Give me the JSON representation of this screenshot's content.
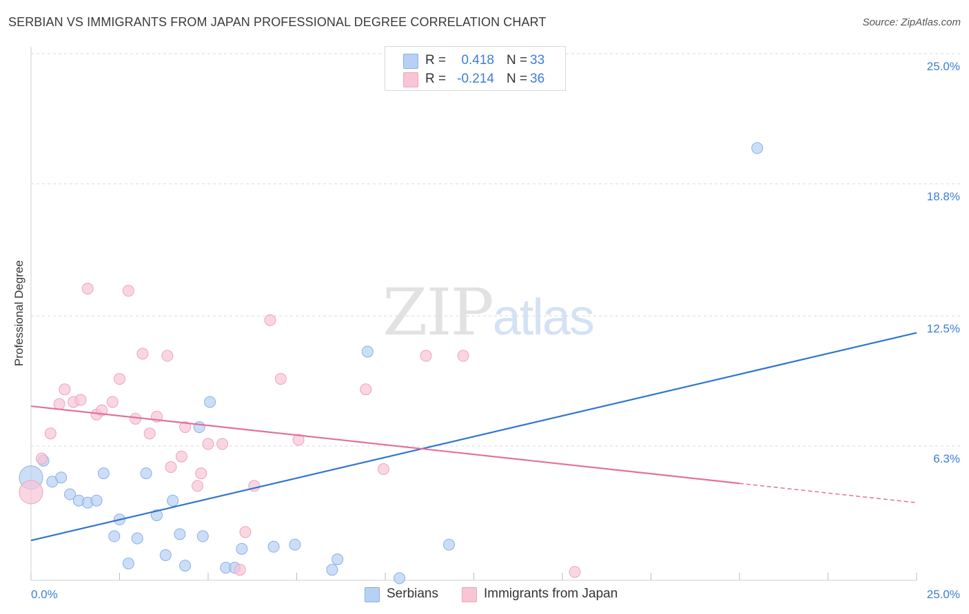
{
  "header": {
    "title": "SERBIAN VS IMMIGRANTS FROM JAPAN PROFESSIONAL DEGREE CORRELATION CHART",
    "source": "Source: ZipAtlas.com"
  },
  "watermark": {
    "zip": "ZIP",
    "atlas": "atlas"
  },
  "colors": {
    "serbians_fill": "#b7d0f3",
    "serbians_stroke": "#88b0e6",
    "serbians_line": "#2f74d0",
    "japan_fill": "#f8c5d5",
    "japan_stroke": "#eea3bb",
    "japan_line": "#e46f9c",
    "tick_label": "#3b7dd8",
    "grid": "#d9d9d9"
  },
  "legend": {
    "rows": [
      {
        "r_label": "R =",
        "r_value": "0.418",
        "n_label": "N =",
        "n_value": "33"
      },
      {
        "r_label": "R =",
        "r_value": "-0.214",
        "n_label": "N =",
        "n_value": "36"
      }
    ]
  },
  "bottom_legend": [
    {
      "label": "Serbians"
    },
    {
      "label": "Immigrants from Japan"
    }
  ],
  "chart_data": {
    "type": "scatter",
    "title": "SERBIAN VS IMMIGRANTS FROM JAPAN PROFESSIONAL DEGREE CORRELATION CHART",
    "xlabel": "",
    "ylabel": "Professional Degree",
    "xlim": [
      0,
      25
    ],
    "ylim": [
      0,
      25
    ],
    "x_tick_labels": [
      "0.0%",
      "25.0%"
    ],
    "y_ticks": [
      6.3,
      12.5,
      18.8,
      25.0
    ],
    "y_tick_labels": [
      "6.3%",
      "12.5%",
      "18.8%",
      "25.0%"
    ],
    "grid": true,
    "legend_position": "top-center",
    "series": [
      {
        "name": "Serbians",
        "r": 0.418,
        "n": 33,
        "trend": {
          "x": [
            0,
            25
          ],
          "y": [
            1.8,
            11.7
          ]
        },
        "points": [
          {
            "x": 0.0,
            "y": 4.8,
            "big": true
          },
          {
            "x": 0.35,
            "y": 5.6
          },
          {
            "x": 0.6,
            "y": 4.6
          },
          {
            "x": 0.85,
            "y": 4.8
          },
          {
            "x": 1.1,
            "y": 4.0
          },
          {
            "x": 1.35,
            "y": 3.7
          },
          {
            "x": 1.6,
            "y": 3.6
          },
          {
            "x": 1.85,
            "y": 3.7
          },
          {
            "x": 2.05,
            "y": 5.0
          },
          {
            "x": 2.35,
            "y": 2.0
          },
          {
            "x": 2.5,
            "y": 2.8
          },
          {
            "x": 2.75,
            "y": 0.7
          },
          {
            "x": 3.0,
            "y": 1.9
          },
          {
            "x": 3.25,
            "y": 5.0
          },
          {
            "x": 3.55,
            "y": 3.0
          },
          {
            "x": 3.8,
            "y": 1.1
          },
          {
            "x": 4.0,
            "y": 3.7
          },
          {
            "x": 4.2,
            "y": 2.1
          },
          {
            "x": 4.35,
            "y": 0.6
          },
          {
            "x": 4.75,
            "y": 7.2
          },
          {
            "x": 4.85,
            "y": 2.0
          },
          {
            "x": 5.05,
            "y": 8.4
          },
          {
            "x": 5.5,
            "y": 0.5
          },
          {
            "x": 5.75,
            "y": 0.5
          },
          {
            "x": 5.95,
            "y": 1.4
          },
          {
            "x": 6.85,
            "y": 1.5
          },
          {
            "x": 7.45,
            "y": 1.6
          },
          {
            "x": 8.5,
            "y": 0.4
          },
          {
            "x": 8.65,
            "y": 0.9
          },
          {
            "x": 9.5,
            "y": 10.8
          },
          {
            "x": 10.4,
            "y": 0.0
          },
          {
            "x": 11.8,
            "y": 1.6
          },
          {
            "x": 20.5,
            "y": 20.5
          }
        ]
      },
      {
        "name": "Immigrants from Japan",
        "r": -0.214,
        "n": 36,
        "trend": {
          "x": [
            0,
            25
          ],
          "y": [
            8.2,
            3.6
          ],
          "solid_to_x": 20.0
        },
        "points": [
          {
            "x": 0.0,
            "y": 4.1,
            "big": true
          },
          {
            "x": 0.3,
            "y": 5.7
          },
          {
            "x": 0.55,
            "y": 6.9
          },
          {
            "x": 0.8,
            "y": 8.3
          },
          {
            "x": 0.95,
            "y": 9.0
          },
          {
            "x": 1.2,
            "y": 8.4
          },
          {
            "x": 1.4,
            "y": 8.5
          },
          {
            "x": 1.6,
            "y": 13.8
          },
          {
            "x": 1.85,
            "y": 7.8
          },
          {
            "x": 2.0,
            "y": 8.0
          },
          {
            "x": 2.3,
            "y": 8.4
          },
          {
            "x": 2.5,
            "y": 9.5
          },
          {
            "x": 2.75,
            "y": 13.7
          },
          {
            "x": 2.95,
            "y": 7.6
          },
          {
            "x": 3.15,
            "y": 10.7
          },
          {
            "x": 3.35,
            "y": 6.9
          },
          {
            "x": 3.55,
            "y": 7.7
          },
          {
            "x": 3.85,
            "y": 10.6
          },
          {
            "x": 3.95,
            "y": 5.3
          },
          {
            "x": 4.25,
            "y": 5.8
          },
          {
            "x": 4.35,
            "y": 7.2
          },
          {
            "x": 4.7,
            "y": 4.4
          },
          {
            "x": 4.8,
            "y": 5.0
          },
          {
            "x": 5.0,
            "y": 6.4
          },
          {
            "x": 5.4,
            "y": 6.4
          },
          {
            "x": 5.9,
            "y": 0.4
          },
          {
            "x": 6.05,
            "y": 2.2
          },
          {
            "x": 6.3,
            "y": 4.4
          },
          {
            "x": 6.75,
            "y": 12.3
          },
          {
            "x": 7.05,
            "y": 9.5
          },
          {
            "x": 7.55,
            "y": 6.6
          },
          {
            "x": 9.45,
            "y": 9.0
          },
          {
            "x": 9.95,
            "y": 5.2
          },
          {
            "x": 11.15,
            "y": 10.6
          },
          {
            "x": 12.2,
            "y": 10.6
          },
          {
            "x": 15.35,
            "y": 0.3
          }
        ]
      }
    ]
  }
}
